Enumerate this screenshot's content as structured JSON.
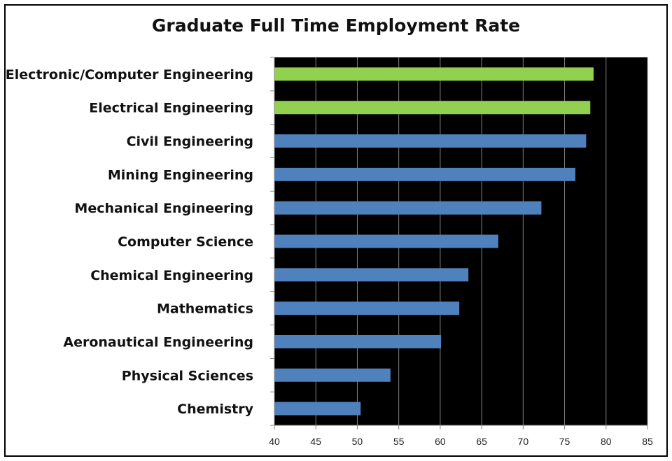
{
  "chart_data": {
    "type": "bar",
    "orientation": "horizontal",
    "title": "Graduate Full Time Employment Rate",
    "xlabel": "",
    "ylabel": "",
    "categories": [
      "Electronic/Computer Engineering",
      "Electrical Engineering",
      "Civil Engineering",
      "Mining Engineering",
      "Mechanical Engineering",
      "Computer Science",
      "Chemical Engineering",
      "Mathematics",
      "Aeronautical Engineering",
      "Physical Sciences",
      "Chemistry"
    ],
    "values": [
      78.5,
      78.1,
      77.6,
      76.3,
      72.2,
      67.0,
      63.4,
      62.3,
      60.1,
      54.0,
      50.4
    ],
    "bar_colors": [
      "#92d050",
      "#92d050",
      "#4f81bd",
      "#4f81bd",
      "#4f81bd",
      "#4f81bd",
      "#4f81bd",
      "#4f81bd",
      "#4f81bd",
      "#4f81bd",
      "#4f81bd"
    ],
    "xlim": [
      40,
      85
    ],
    "xticks": [
      "40",
      "45",
      "50",
      "55",
      "60",
      "65",
      "70",
      "75",
      "80",
      "85"
    ],
    "grid": true,
    "plot_background": "#000000",
    "gridline_color": "#808080"
  }
}
